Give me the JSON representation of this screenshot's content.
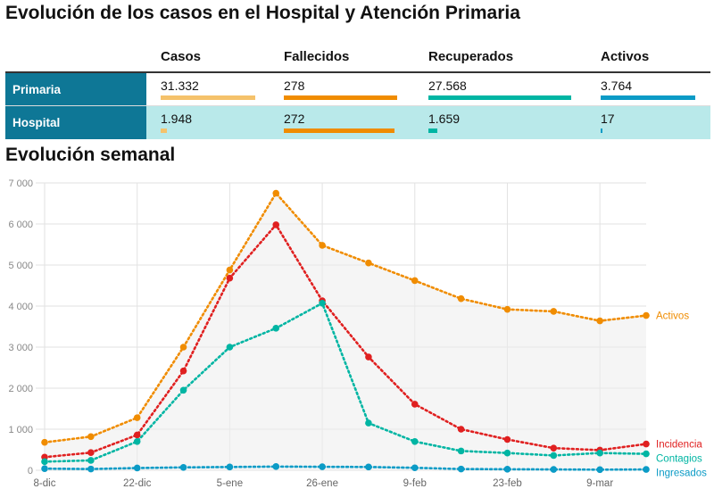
{
  "page": {
    "title": "Evolución de los casos en el Hospital y Atención Primaria",
    "chart_title": "Evolución semanal"
  },
  "table": {
    "headers": [
      "Casos",
      "Fallecidos",
      "Recuperados",
      "Activos"
    ],
    "rows": [
      {
        "label": "Primaria",
        "values": [
          "31.332",
          "278",
          "27.568",
          "3.764"
        ],
        "fractions": [
          1.0,
          1.0,
          1.0,
          1.0
        ]
      },
      {
        "label": "Hospital",
        "values": [
          "1.948",
          "272",
          "1.659",
          "17"
        ],
        "fractions": [
          0.062,
          0.978,
          0.06,
          0.0045
        ]
      }
    ],
    "colors": [
      "#f5c26b",
      "#f08c00",
      "#00b5a3",
      "#0b9bc6"
    ]
  },
  "chart_data": {
    "type": "line",
    "title": "Evolución semanal",
    "x_tick_labels": [
      "8-dic",
      "22-dic",
      "5-ene",
      "26-ene",
      "9-feb",
      "23-feb",
      "9-mar"
    ],
    "ylim": [
      0,
      7000
    ],
    "y_ticks": [
      0,
      1000,
      2000,
      3000,
      4000,
      5000,
      6000,
      7000
    ],
    "y_tick_labels": [
      "0",
      "1 000",
      "2 000",
      "3 000",
      "4 000",
      "5 000",
      "6 000",
      "7 000"
    ],
    "grid": true,
    "series": [
      {
        "name": "Activos",
        "color": "#f08c00",
        "area": true,
        "values": [
          680,
          820,
          1280,
          3000,
          4880,
          6750,
          5480,
          5050,
          4620,
          4180,
          3920,
          3870,
          3640,
          3770
        ]
      },
      {
        "name": "Incidencia",
        "color": "#e02020",
        "values": [
          320,
          430,
          860,
          2420,
          4680,
          5980,
          4130,
          2760,
          1610,
          1000,
          750,
          540,
          490,
          640
        ]
      },
      {
        "name": "Contagios",
        "color": "#00b5a3",
        "values": [
          210,
          240,
          700,
          1950,
          3000,
          3460,
          4070,
          1150,
          700,
          470,
          420,
          360,
          420,
          400
        ]
      },
      {
        "name": "Ingresados",
        "color": "#0b9bc6",
        "values": [
          40,
          30,
          55,
          70,
          80,
          90,
          85,
          80,
          60,
          30,
          25,
          20,
          15,
          20
        ]
      }
    ],
    "x_ticks_index": [
      0,
      2,
      4,
      6,
      8,
      10,
      12
    ]
  }
}
